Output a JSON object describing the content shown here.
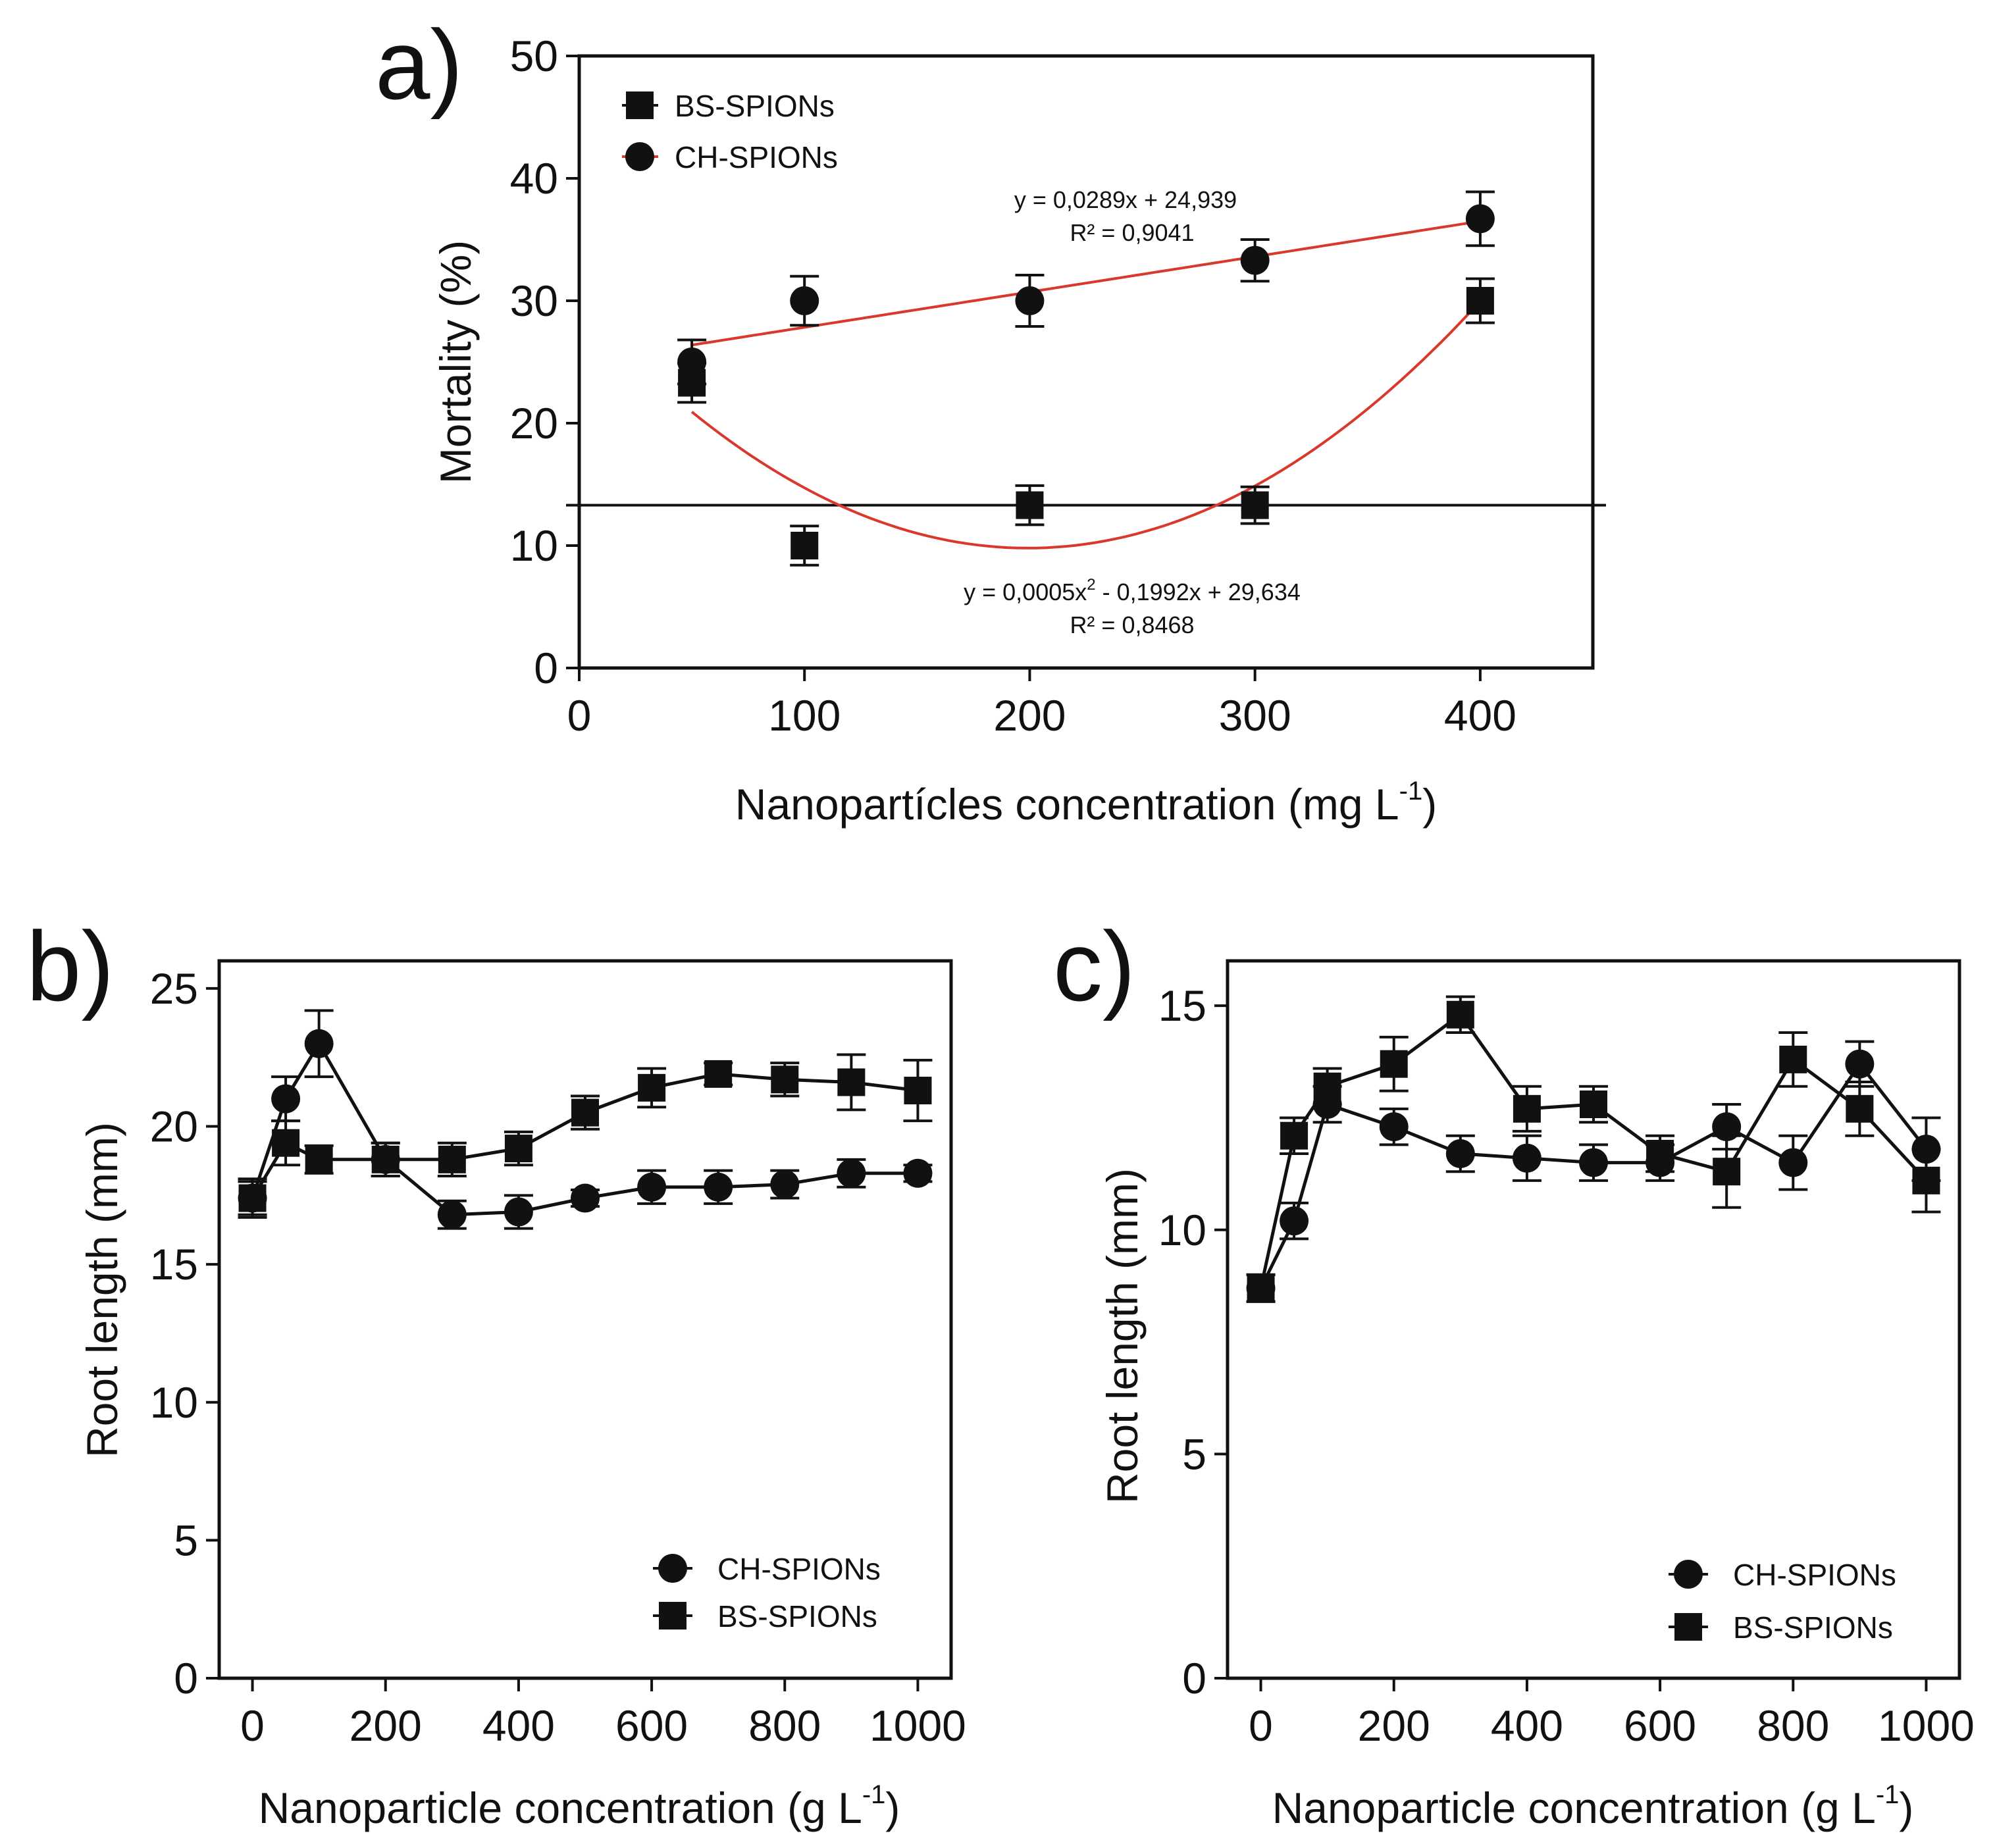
{
  "colors": {
    "axis": "#111111",
    "marker": "#111111",
    "fit": "#d9382c",
    "line": "#111111"
  },
  "chart_data": [
    {
      "panel": "a)",
      "type": "scatter",
      "xlabel": "Nanopartícles concentration (mg L",
      "xlabel_sup": "-1",
      "xlabel_tail": ")",
      "ylabel": "Mortality (%)",
      "xlim": [
        0,
        450
      ],
      "ylim": [
        0,
        50
      ],
      "xticks": [
        0,
        100,
        200,
        300,
        400
      ],
      "yticks": [
        0,
        10,
        20,
        30,
        40,
        50
      ],
      "reference_line_y": 13.3,
      "series": [
        {
          "name": "BS-SPIONs",
          "marker": "square",
          "x": [
            50,
            100,
            200,
            300,
            400
          ],
          "y": [
            23.3,
            10,
            13.3,
            13.3,
            30
          ],
          "err": [
            1.6,
            1.6,
            1.6,
            1.5,
            1.8
          ]
        },
        {
          "name": "CH-SPIONs",
          "marker": "circle",
          "x": [
            50,
            100,
            200,
            300,
            400
          ],
          "y": [
            25,
            30,
            30,
            33.3,
            36.7
          ],
          "err": [
            1.8,
            2.0,
            2.1,
            1.7,
            2.2
          ]
        }
      ],
      "legend_order": [
        "BS-SPIONs",
        "CH-SPIONs"
      ],
      "fits": [
        {
          "series": "CH-SPIONs",
          "kind": "linear",
          "coef": [
            0.0289,
            24.939
          ],
          "xrange": [
            50,
            400
          ],
          "eq": "y = 0,0289x + 24,939",
          "r2": "R² = 0,9041"
        },
        {
          "series": "BS-SPIONs",
          "kind": "quadratic",
          "coef": [
            0.0005,
            -0.1992,
            29.634
          ],
          "xrange": [
            50,
            400
          ],
          "eq_prefix": "y = 0,0005x",
          "eq_sup": "2",
          "eq_rest": " - 0,1992x + 29,634",
          "r2": "R² = 0,8468"
        }
      ]
    },
    {
      "panel": "b)",
      "type": "line",
      "xlabel": "Nanoparticle concentration (g L",
      "xlabel_sup": "-1",
      "xlabel_tail": ")",
      "ylabel": "Root length (mm)",
      "xlim": [
        -50,
        1050
      ],
      "ylim": [
        0,
        26
      ],
      "xticks": [
        0,
        200,
        400,
        600,
        800,
        1000
      ],
      "yticks": [
        0,
        5,
        10,
        15,
        20,
        25
      ],
      "legend_order": [
        "CH-SPIONs",
        "BS-SPIONs"
      ],
      "series": [
        {
          "name": "CH-SPIONs",
          "marker": "circle",
          "x": [
            0,
            50,
            100,
            200,
            300,
            400,
            500,
            600,
            700,
            800,
            900,
            1000
          ],
          "y": [
            17.4,
            21.0,
            23.0,
            18.8,
            16.8,
            16.9,
            17.4,
            17.8,
            17.8,
            17.9,
            18.3,
            18.3
          ],
          "err": [
            0.6,
            0.8,
            1.2,
            0.6,
            0.5,
            0.6,
            0.3,
            0.6,
            0.6,
            0.5,
            0.5,
            0.3
          ]
        },
        {
          "name": "BS-SPIONs",
          "marker": "square",
          "x": [
            0,
            50,
            100,
            200,
            300,
            400,
            500,
            600,
            700,
            800,
            900,
            1000
          ],
          "y": [
            17.4,
            19.4,
            18.8,
            18.8,
            18.8,
            19.2,
            20.5,
            21.4,
            21.9,
            21.7,
            21.6,
            21.3
          ],
          "err": [
            0.7,
            0.8,
            0.5,
            0.6,
            0.6,
            0.6,
            0.6,
            0.7,
            0.4,
            0.6,
            1.0,
            1.1
          ]
        }
      ]
    },
    {
      "panel": "c)",
      "type": "line",
      "xlabel": "Nanoparticle concentration (g L",
      "xlabel_sup": "-1",
      "xlabel_tail": ")",
      "ylabel": "Root length (mm)",
      "xlim": [
        -50,
        1050
      ],
      "ylim": [
        0,
        16
      ],
      "xticks": [
        0,
        200,
        400,
        600,
        800,
        1000
      ],
      "yticks": [
        0,
        5,
        10,
        15
      ],
      "legend_order": [
        "CH-SPIONs",
        "BS-SPIONs"
      ],
      "series": [
        {
          "name": "CH-SPIONs",
          "marker": "circle",
          "x": [
            0,
            50,
            100,
            200,
            300,
            400,
            500,
            600,
            700,
            800,
            900,
            1000
          ],
          "y": [
            8.7,
            10.2,
            12.8,
            12.3,
            11.7,
            11.6,
            11.5,
            11.5,
            12.3,
            11.5,
            13.7,
            11.8
          ],
          "err": [
            0.3,
            0.4,
            0.4,
            0.4,
            0.4,
            0.5,
            0.4,
            0.4,
            0.5,
            0.6,
            0.5,
            0.7
          ]
        },
        {
          "name": "BS-SPIONs",
          "marker": "square",
          "x": [
            0,
            50,
            100,
            200,
            300,
            400,
            500,
            600,
            700,
            800,
            900,
            1000
          ],
          "y": [
            8.7,
            12.1,
            13.2,
            13.7,
            14.8,
            12.7,
            12.8,
            11.7,
            11.3,
            13.8,
            12.7,
            11.1
          ],
          "err": [
            0.3,
            0.4,
            0.4,
            0.6,
            0.4,
            0.5,
            0.4,
            0.4,
            0.8,
            0.6,
            0.6,
            0.7
          ]
        }
      ]
    }
  ]
}
